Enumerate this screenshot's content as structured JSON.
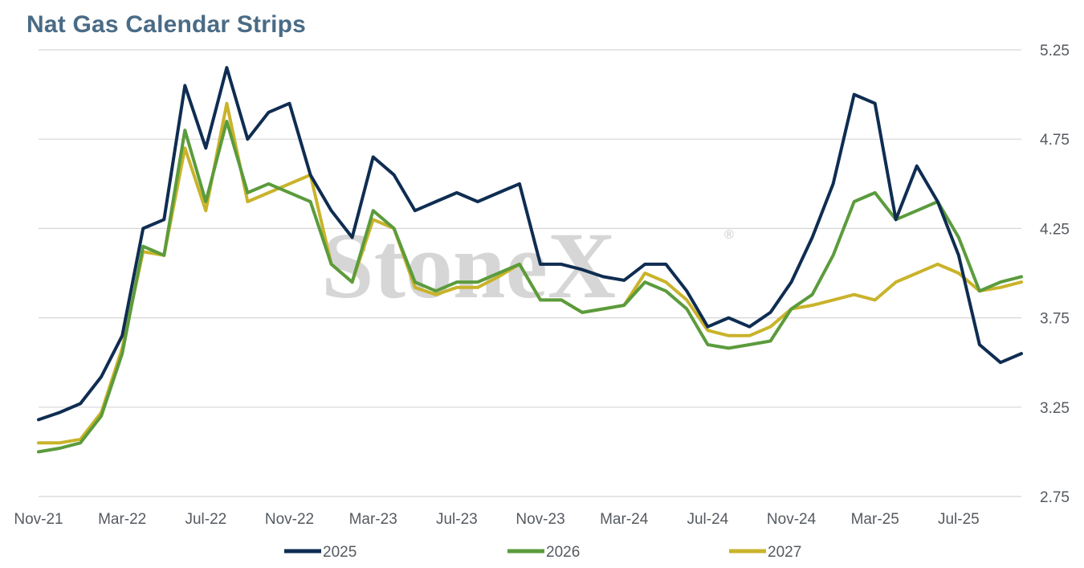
{
  "chart_data": {
    "type": "line",
    "title": "Nat Gas Calendar Strips",
    "watermark": "StoneX",
    "watermark_mark": "®",
    "x_tick_labels": [
      "Nov-21",
      "Mar-22",
      "Jul-22",
      "Nov-22",
      "Mar-23",
      "Jul-23",
      "Nov-23",
      "Mar-24",
      "Jul-24",
      "Nov-24",
      "Mar-25",
      "Jul-25"
    ],
    "y_tick_labels": [
      "5.25",
      "4.75",
      "4.25",
      "3.75",
      "3.25",
      "2.75"
    ],
    "ylim": [
      2.75,
      5.25
    ],
    "y_axis_side": "right",
    "grid": "horizontal",
    "legend_position": "bottom",
    "x_dates": [
      "2021-11",
      "2021-12",
      "2022-01",
      "2022-02",
      "2022-03",
      "2022-04",
      "2022-05",
      "2022-06",
      "2022-07",
      "2022-08",
      "2022-09",
      "2022-10",
      "2022-11",
      "2022-12",
      "2023-01",
      "2023-02",
      "2023-03",
      "2023-04",
      "2023-05",
      "2023-06",
      "2023-07",
      "2023-08",
      "2023-09",
      "2023-10",
      "2023-11",
      "2023-12",
      "2024-01",
      "2024-02",
      "2024-03",
      "2024-04",
      "2024-05",
      "2024-06",
      "2024-07",
      "2024-08",
      "2024-09",
      "2024-10",
      "2024-11",
      "2024-12",
      "2025-01",
      "2025-02",
      "2025-03",
      "2025-04",
      "2025-05",
      "2025-06",
      "2025-07",
      "2025-08",
      "2025-09",
      "2025-10"
    ],
    "series": [
      {
        "name": "2025",
        "color": "#0f2d52",
        "values": [
          3.18,
          3.22,
          3.27,
          3.42,
          3.65,
          4.25,
          4.3,
          5.05,
          4.7,
          5.15,
          4.75,
          4.9,
          4.95,
          4.55,
          4.35,
          4.2,
          4.65,
          4.55,
          4.35,
          4.4,
          4.45,
          4.4,
          4.45,
          4.5,
          4.05,
          4.05,
          4.02,
          3.98,
          3.96,
          4.05,
          4.05,
          3.9,
          3.7,
          3.75,
          3.7,
          3.78,
          3.95,
          4.2,
          4.5,
          5.0,
          4.95,
          4.3,
          4.6,
          4.4,
          4.1,
          3.6,
          3.5,
          3.55
        ]
      },
      {
        "name": "2026",
        "color": "#5b9b3c",
        "values": [
          3.0,
          3.02,
          3.05,
          3.2,
          3.55,
          4.15,
          4.1,
          4.8,
          4.4,
          4.85,
          4.45,
          4.5,
          4.45,
          4.4,
          4.05,
          3.95,
          4.35,
          4.25,
          3.95,
          3.9,
          3.95,
          3.95,
          4.0,
          4.05,
          3.85,
          3.85,
          3.78,
          3.8,
          3.82,
          3.95,
          3.9,
          3.8,
          3.6,
          3.58,
          3.6,
          3.62,
          3.8,
          3.88,
          4.1,
          4.4,
          4.45,
          4.3,
          4.35,
          4.4,
          4.2,
          3.9,
          3.95,
          3.98
        ]
      },
      {
        "name": "2027",
        "color": "#c9b32a",
        "values": [
          3.05,
          3.05,
          3.07,
          3.22,
          3.58,
          4.12,
          4.1,
          4.7,
          4.35,
          4.95,
          4.4,
          4.45,
          4.5,
          4.55,
          4.05,
          3.95,
          4.3,
          4.25,
          3.92,
          3.88,
          3.92,
          3.92,
          3.98,
          4.05,
          3.85,
          3.85,
          3.78,
          3.8,
          3.82,
          4.0,
          3.95,
          3.85,
          3.68,
          3.65,
          3.65,
          3.7,
          3.8,
          3.82,
          3.85,
          3.88,
          3.85,
          3.95,
          4.0,
          4.05,
          4.0,
          3.9,
          3.92,
          3.95
        ]
      }
    ]
  }
}
